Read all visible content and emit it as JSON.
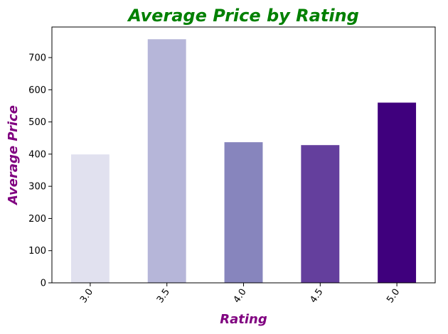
{
  "chart_data": {
    "type": "bar",
    "title": "Average Price by Rating",
    "xlabel": "Rating",
    "ylabel": "Average Price",
    "categories": [
      "3.0",
      "3.5",
      "4.0",
      "4.5",
      "5.0"
    ],
    "values": [
      399,
      757,
      437,
      428,
      560
    ],
    "bar_colors": [
      "#e1e1ef",
      "#b6b6d9",
      "#8785bd",
      "#643f9d",
      "#3f007d"
    ],
    "ylim": [
      0,
      795
    ],
    "yticks": [
      0,
      100,
      200,
      300,
      400,
      500,
      600,
      700
    ],
    "grid": false,
    "legend": "none",
    "title_color": "#008000",
    "label_color": "#800080"
  }
}
